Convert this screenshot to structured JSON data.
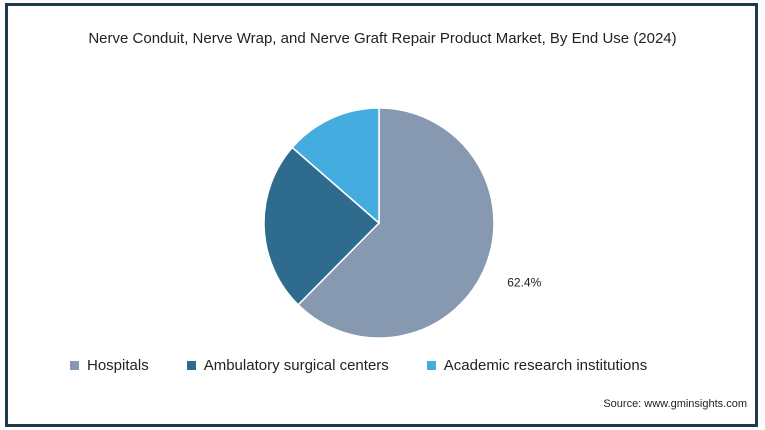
{
  "chart_data": {
    "type": "pie",
    "title": "Nerve Conduit, Nerve Wrap, and Nerve Graft Repair Product Market, By End Use (2024)",
    "categories": [
      "Hospitals",
      "Ambulatory surgical centers",
      "Academic research institutions"
    ],
    "values": [
      62.4,
      24.0,
      13.6
    ],
    "colors": [
      "#8798b1",
      "#2e6b8c",
      "#45ace0"
    ],
    "data_labels": [
      "62.4%",
      "",
      ""
    ],
    "legend_position": "bottom"
  },
  "source": "Source: www.gminsights.com"
}
